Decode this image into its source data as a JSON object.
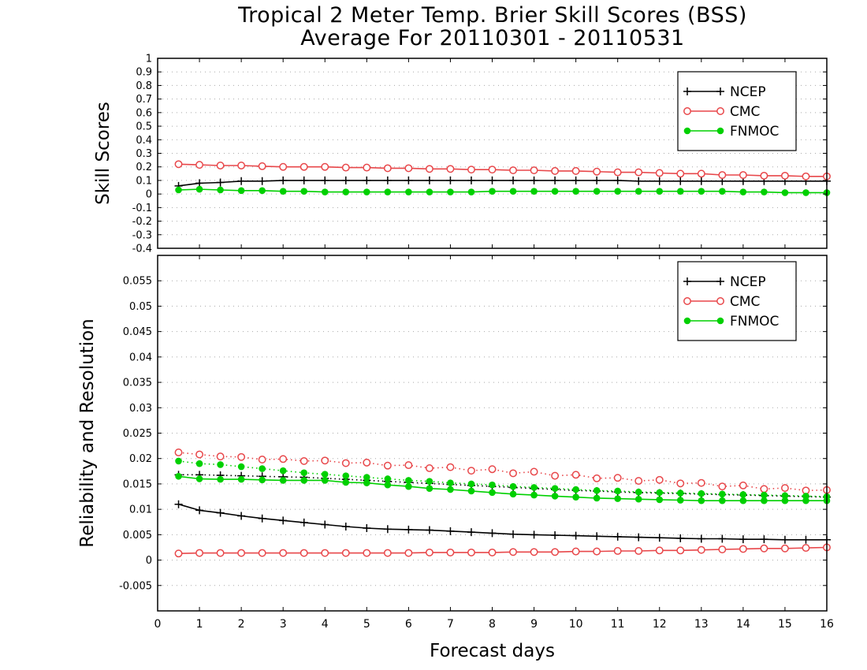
{
  "chart_data": [
    {
      "type": "line",
      "title": "Tropical 2 Meter Temp. Brier Skill Scores (BSS)",
      "subtitle": "Average For 20110301 - 20110531",
      "ylabel": "Skill Scores",
      "xlim": [
        0,
        16
      ],
      "ylim": [
        -0.4,
        1
      ],
      "yticks": [
        "1",
        "0.9",
        "0.8",
        "0.7",
        "0.6",
        "0.5",
        "0.4",
        "0.3",
        "0.2",
        "0.1",
        "0",
        "-0.1",
        "-0.2",
        "-0.3",
        "-0.4"
      ],
      "grid": true,
      "legend_position": "top-right",
      "x": [
        0.5,
        1,
        1.5,
        2,
        2.5,
        3,
        3.5,
        4,
        4.5,
        5,
        5.5,
        6,
        6.5,
        7,
        7.5,
        8,
        8.5,
        9,
        9.5,
        10,
        10.5,
        11,
        11.5,
        12,
        12.5,
        13,
        13.5,
        14,
        14.5,
        15,
        15.5,
        16
      ],
      "series": [
        {
          "name": "NCEP",
          "color": "#000000",
          "marker": "plus",
          "style": "solid",
          "values": [
            0.06,
            0.08,
            0.085,
            0.095,
            0.095,
            0.1,
            0.1,
            0.1,
            0.1,
            0.1,
            0.1,
            0.1,
            0.1,
            0.1,
            0.1,
            0.1,
            0.1,
            0.1,
            0.1,
            0.1,
            0.1,
            0.1,
            0.095,
            0.095,
            0.095,
            0.095,
            0.095,
            0.095,
            0.095,
            0.095,
            0.095,
            0.095
          ]
        },
        {
          "name": "CMC",
          "color": "#e8474a",
          "marker": "open-circle",
          "style": "solid",
          "values": [
            0.22,
            0.215,
            0.21,
            0.21,
            0.205,
            0.2,
            0.2,
            0.2,
            0.195,
            0.195,
            0.19,
            0.19,
            0.185,
            0.185,
            0.18,
            0.18,
            0.175,
            0.175,
            0.17,
            0.17,
            0.165,
            0.16,
            0.16,
            0.155,
            0.15,
            0.15,
            0.14,
            0.14,
            0.135,
            0.135,
            0.13,
            0.13
          ]
        },
        {
          "name": "FNMOC",
          "color": "#00d000",
          "marker": "filled-circle",
          "style": "solid",
          "values": [
            0.03,
            0.035,
            0.03,
            0.025,
            0.025,
            0.02,
            0.02,
            0.015,
            0.015,
            0.015,
            0.015,
            0.015,
            0.015,
            0.015,
            0.015,
            0.02,
            0.02,
            0.02,
            0.02,
            0.02,
            0.02,
            0.02,
            0.02,
            0.02,
            0.02,
            0.02,
            0.02,
            0.015,
            0.015,
            0.01,
            0.01,
            0.01
          ]
        }
      ]
    },
    {
      "type": "line",
      "ylabel": "Reliability and Resolution",
      "xlabel": "Forecast days",
      "xlim": [
        0,
        16
      ],
      "ylim": [
        -0.01,
        0.06
      ],
      "xticks": [
        "0",
        "1",
        "2",
        "3",
        "4",
        "5",
        "6",
        "7",
        "8",
        "9",
        "10",
        "11",
        "12",
        "13",
        "14",
        "15",
        "16"
      ],
      "yticks": [
        "0.055",
        "0.05",
        "0.045",
        "0.04",
        "0.035",
        "0.03",
        "0.025",
        "0.02",
        "0.015",
        "0.01",
        "0.005",
        "0",
        "-0.005"
      ],
      "grid": true,
      "legend_position": "top-right",
      "x": [
        0.5,
        1,
        1.5,
        2,
        2.5,
        3,
        3.5,
        4,
        4.5,
        5,
        5.5,
        6,
        6.5,
        7,
        7.5,
        8,
        8.5,
        9,
        9.5,
        10,
        10.5,
        11,
        11.5,
        12,
        12.5,
        13,
        13.5,
        14,
        14.5,
        15,
        15.5,
        16
      ],
      "series": [
        {
          "name": "NCEP",
          "color": "#000000",
          "marker": "plus",
          "style": "solid",
          "values": [
            0.011,
            0.0098,
            0.0093,
            0.0087,
            0.0082,
            0.0078,
            0.0074,
            0.007,
            0.0066,
            0.0063,
            0.0061,
            0.006,
            0.0059,
            0.0057,
            0.0055,
            0.0053,
            0.0051,
            0.005,
            0.0049,
            0.0048,
            0.0047,
            0.0046,
            0.0045,
            0.0044,
            0.0043,
            0.0042,
            0.0042,
            0.0041,
            0.0041,
            0.004,
            0.004,
            0.004
          ]
        },
        {
          "name": "NCEP",
          "color": "#000000",
          "marker": "plus",
          "style": "dotted",
          "values": [
            0.0168,
            0.0168,
            0.0167,
            0.0166,
            0.0165,
            0.0164,
            0.0163,
            0.0161,
            0.0159,
            0.0157,
            0.0155,
            0.0153,
            0.0151,
            0.0149,
            0.0147,
            0.0145,
            0.0143,
            0.0141,
            0.0139,
            0.0137,
            0.0136,
            0.0134,
            0.0133,
            0.0132,
            0.0131,
            0.013,
            0.0129,
            0.0128,
            0.0127,
            0.0126,
            0.0125,
            0.0124
          ]
        },
        {
          "name": "CMC",
          "color": "#e8474a",
          "marker": "open-circle",
          "style": "solid",
          "values": [
            0.0013,
            0.0014,
            0.0014,
            0.0014,
            0.0014,
            0.0014,
            0.0014,
            0.0014,
            0.0014,
            0.0014,
            0.0014,
            0.0014,
            0.0015,
            0.0015,
            0.0015,
            0.0015,
            0.0016,
            0.0016,
            0.0016,
            0.0017,
            0.0017,
            0.0018,
            0.0018,
            0.0019,
            0.0019,
            0.002,
            0.0021,
            0.0022,
            0.0023,
            0.0023,
            0.0024,
            0.0025
          ]
        },
        {
          "name": "CMC",
          "color": "#e8474a",
          "marker": "open-circle",
          "style": "dotted",
          "values": [
            0.0212,
            0.0208,
            0.0204,
            0.0203,
            0.0198,
            0.0199,
            0.0195,
            0.0196,
            0.0191,
            0.0192,
            0.0186,
            0.0187,
            0.0181,
            0.0183,
            0.0176,
            0.0179,
            0.0171,
            0.0174,
            0.0166,
            0.0168,
            0.0161,
            0.0162,
            0.0156,
            0.0158,
            0.0151,
            0.0152,
            0.0145,
            0.0147,
            0.014,
            0.0142,
            0.0137,
            0.0138
          ]
        },
        {
          "name": "FNMOC",
          "color": "#00d000",
          "marker": "filled-circle",
          "style": "solid",
          "values": [
            0.0165,
            0.016,
            0.0159,
            0.0159,
            0.0158,
            0.0157,
            0.0157,
            0.0157,
            0.0153,
            0.0152,
            0.0148,
            0.0145,
            0.0141,
            0.0139,
            0.0136,
            0.0133,
            0.013,
            0.0128,
            0.0126,
            0.0124,
            0.0122,
            0.0121,
            0.012,
            0.0119,
            0.0118,
            0.0117,
            0.0117,
            0.0117,
            0.0117,
            0.0117,
            0.0117,
            0.0117
          ]
        },
        {
          "name": "FNMOC",
          "color": "#00d000",
          "marker": "filled-circle",
          "style": "dotted",
          "values": [
            0.0195,
            0.019,
            0.0188,
            0.0184,
            0.018,
            0.0176,
            0.0172,
            0.0169,
            0.0166,
            0.0163,
            0.016,
            0.0157,
            0.0155,
            0.0152,
            0.015,
            0.0148,
            0.0145,
            0.0143,
            0.0141,
            0.0139,
            0.0137,
            0.0136,
            0.0134,
            0.0133,
            0.0132,
            0.0131,
            0.013,
            0.0129,
            0.0128,
            0.0127,
            0.0126,
            0.0125
          ]
        }
      ]
    }
  ]
}
